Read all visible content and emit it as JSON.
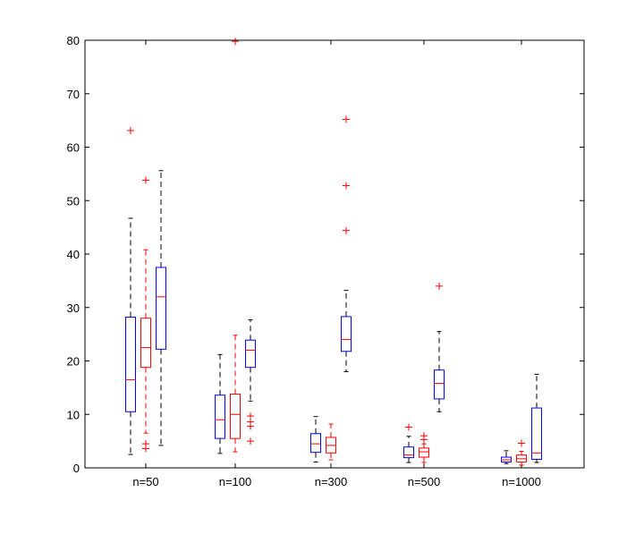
{
  "chart_data": {
    "type": "box",
    "title": "",
    "xlabel": "",
    "ylabel": "",
    "ylim": [
      0,
      80
    ],
    "yticks": [
      0,
      10,
      20,
      30,
      40,
      50,
      60,
      70,
      80
    ],
    "grid": false,
    "legend": "none",
    "categories": [
      "n=50",
      "n=100",
      "n=300",
      "n=500",
      "n=1000"
    ],
    "colors": {
      "blue_box": "#0000ff",
      "red_box": "#ff0000",
      "median": "#ff0000",
      "whisker": "#000000",
      "outlier": "#ff0000"
    },
    "boxes": [
      {
        "group": 0,
        "slot": 0,
        "color": "blue",
        "q1": 10.5,
        "median": 16.5,
        "q3": 28.2,
        "whisker_low": 2.5,
        "whisker_high": 46.7,
        "outliers": [
          63.1
        ]
      },
      {
        "group": 0,
        "slot": 1,
        "color": "red",
        "q1": 18.8,
        "median": 22.5,
        "q3": 28.0,
        "whisker_low": 6.5,
        "whisker_high": 40.8,
        "outliers": [
          53.8,
          4.5,
          3.6
        ]
      },
      {
        "group": 0,
        "slot": 2,
        "color": "blue",
        "q1": 22.2,
        "median": 32.0,
        "q3": 37.5,
        "whisker_low": 4.2,
        "whisker_high": 55.6,
        "outliers": []
      },
      {
        "group": 1,
        "slot": 0,
        "color": "blue",
        "q1": 5.5,
        "median": 9.0,
        "q3": 13.6,
        "whisker_low": 2.7,
        "whisker_high": 21.2,
        "outliers": []
      },
      {
        "group": 1,
        "slot": 1,
        "color": "red",
        "q1": 5.5,
        "median": 10.0,
        "q3": 13.8,
        "whisker_low": 3.0,
        "whisker_high": 24.8,
        "outliers": [
          79.8
        ]
      },
      {
        "group": 1,
        "slot": 2,
        "color": "blue",
        "q1": 18.8,
        "median": 22.0,
        "q3": 23.9,
        "whisker_low": 12.5,
        "whisker_high": 27.7,
        "outliers": [
          9.7,
          8.6,
          7.8,
          5.0
        ]
      },
      {
        "group": 2,
        "slot": 0,
        "color": "blue",
        "q1": 2.9,
        "median": 4.5,
        "q3": 6.4,
        "whisker_low": 1.1,
        "whisker_high": 9.6,
        "outliers": []
      },
      {
        "group": 2,
        "slot": 1,
        "color": "red",
        "q1": 2.8,
        "median": 4.2,
        "q3": 5.7,
        "whisker_low": 1.5,
        "whisker_high": 8.2,
        "outliers": []
      },
      {
        "group": 2,
        "slot": 2,
        "color": "blue",
        "q1": 21.8,
        "median": 24.0,
        "q3": 28.3,
        "whisker_low": 18.0,
        "whisker_high": 33.2,
        "outliers": [
          65.2,
          52.8,
          44.4
        ]
      },
      {
        "group": 3,
        "slot": 0,
        "color": "blue",
        "q1": 1.9,
        "median": 2.4,
        "q3": 3.9,
        "whisker_low": 1.0,
        "whisker_high": 5.9,
        "outliers": [
          7.6
        ]
      },
      {
        "group": 3,
        "slot": 1,
        "color": "red",
        "q1": 2.0,
        "median": 3.0,
        "q3": 3.7,
        "whisker_low": 1.0,
        "whisker_high": 4.5,
        "outliers": [
          6.0,
          5.3
        ]
      },
      {
        "group": 3,
        "slot": 2,
        "color": "blue",
        "q1": 12.9,
        "median": 15.8,
        "q3": 18.3,
        "whisker_low": 10.5,
        "whisker_high": 25.5,
        "outliers": [
          34.0
        ]
      },
      {
        "group": 4,
        "slot": 0,
        "color": "blue",
        "q1": 1.1,
        "median": 1.5,
        "q3": 2.0,
        "whisker_low": 0.8,
        "whisker_high": 3.2,
        "outliers": []
      },
      {
        "group": 4,
        "slot": 1,
        "color": "red",
        "q1": 1.1,
        "median": 1.7,
        "q3": 2.4,
        "whisker_low": 0.5,
        "whisker_high": 3.1,
        "outliers": [
          4.6
        ]
      },
      {
        "group": 4,
        "slot": 2,
        "color": "blue",
        "q1": 1.6,
        "median": 2.8,
        "q3": 11.2,
        "whisker_low": 1.0,
        "whisker_high": 17.5,
        "outliers": []
      }
    ]
  }
}
